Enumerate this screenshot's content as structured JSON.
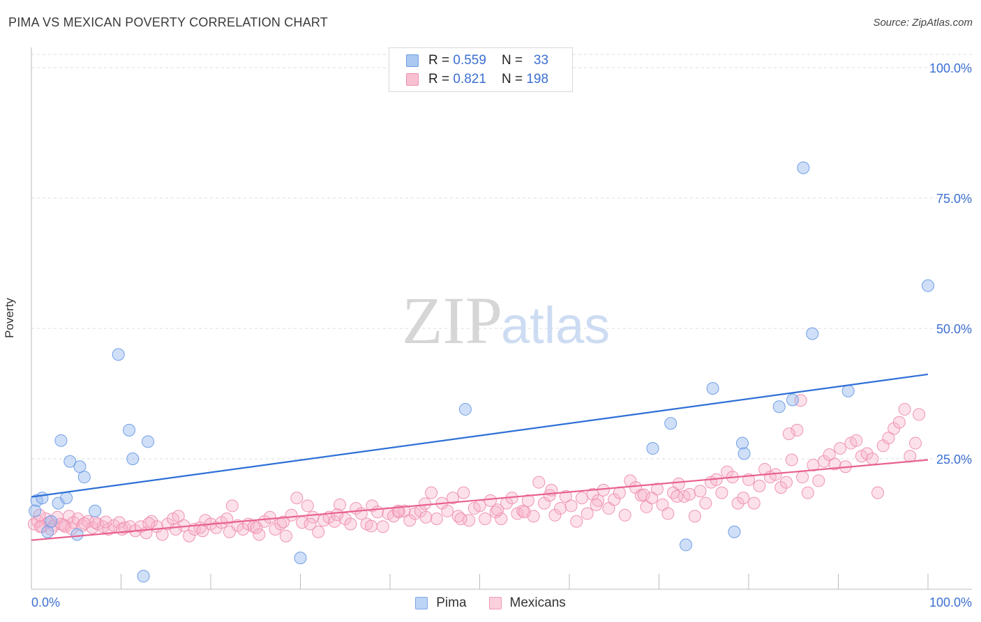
{
  "title": "PIMA VS MEXICAN POVERTY CORRELATION CHART",
  "source": "Source: ZipAtlas.com",
  "watermark": {
    "zip": "ZIP",
    "atlas": "atlas"
  },
  "legend": {
    "rows": [
      {
        "r_label": "R = ",
        "r_value": "0.559",
        "n_label": "N = ",
        "n_value": "33",
        "color": "#aac8f2",
        "border": "#6e9de0"
      },
      {
        "r_label": "R = ",
        "r_value": "0.821",
        "n_label": "N = ",
        "n_value": "198",
        "color": "#f9c0d2",
        "border": "#ec8fae"
      }
    ]
  },
  "bottom_legend": [
    {
      "label": "Pima",
      "color": "#bcd4f6",
      "border": "#7ea6e3"
    },
    {
      "label": "Mexicans",
      "color": "#fbd0dd",
      "border": "#ee9bb6"
    }
  ],
  "chart_data": {
    "type": "scatter",
    "title": "PIMA VS MEXICAN POVERTY CORRELATION CHART",
    "xlabel": "",
    "ylabel": "Poverty",
    "xlim": [
      0,
      100
    ],
    "ylim": [
      0,
      100
    ],
    "x_tick_labels": [
      "0.0%",
      "100.0%"
    ],
    "y_tick_labels": [
      "25.0%",
      "50.0%",
      "75.0%",
      "100.0%"
    ],
    "y_ticks": [
      25,
      50,
      75,
      100
    ],
    "grid": true,
    "series": [
      {
        "name": "Pima",
        "color": "#6f9fe6",
        "fill": "rgba(150,185,240,0.45)",
        "line_color": "#2e6fd6",
        "trend": [
          [
            0,
            17.7
          ],
          [
            100,
            41.2
          ]
        ],
        "points": [
          [
            0.6,
            17.0
          ],
          [
            1.2,
            17.5
          ],
          [
            1.8,
            11.0
          ],
          [
            2.2,
            13.0
          ],
          [
            3.0,
            16.5
          ],
          [
            3.3,
            28.5
          ],
          [
            3.9,
            17.5
          ],
          [
            4.3,
            24.5
          ],
          [
            5.1,
            10.5
          ],
          [
            5.4,
            23.5
          ],
          [
            5.9,
            21.5
          ],
          [
            7.1,
            15.0
          ],
          [
            9.7,
            45.0
          ],
          [
            10.9,
            30.5
          ],
          [
            11.3,
            25.0
          ],
          [
            12.5,
            2.5
          ],
          [
            13.0,
            28.3
          ],
          [
            30.0,
            6.0
          ],
          [
            48.4,
            34.5
          ],
          [
            69.3,
            27.0
          ],
          [
            71.3,
            31.8
          ],
          [
            73.0,
            8.5
          ],
          [
            76.0,
            38.5
          ],
          [
            78.4,
            11.0
          ],
          [
            79.3,
            28.0
          ],
          [
            79.5,
            26.0
          ],
          [
            83.4,
            35.0
          ],
          [
            84.9,
            36.3
          ],
          [
            86.1,
            80.8
          ],
          [
            87.1,
            49.0
          ],
          [
            91.1,
            38.0
          ],
          [
            100.0,
            58.2
          ],
          [
            0.4,
            15.0
          ]
        ]
      },
      {
        "name": "Mexicans",
        "color": "#ef93b2",
        "fill": "rgba(248,180,203,0.40)",
        "line_color": "#e8608e",
        "trend": [
          [
            0,
            9.4
          ],
          [
            100,
            24.8
          ]
        ],
        "points": [
          [
            0.3,
            12.5
          ],
          [
            0.7,
            13.0
          ],
          [
            1.2,
            12.0
          ],
          [
            1.6,
            13.5
          ],
          [
            2.0,
            12.8
          ],
          [
            2.5,
            12.2
          ],
          [
            2.9,
            13.8
          ],
          [
            3.3,
            12.5
          ],
          [
            3.8,
            12.0
          ],
          [
            4.2,
            14.0
          ],
          [
            4.7,
            12.8
          ],
          [
            5.2,
            13.5
          ],
          [
            5.7,
            12.2
          ],
          [
            6.3,
            13.0
          ],
          [
            6.8,
            11.8
          ],
          [
            7.4,
            12.5
          ],
          [
            8.0,
            12.0
          ],
          [
            8.6,
            11.5
          ],
          [
            9.2,
            12.2
          ],
          [
            9.8,
            12.8
          ],
          [
            10.4,
            11.8
          ],
          [
            11.0,
            12.0
          ],
          [
            11.6,
            11.2
          ],
          [
            12.2,
            12.0
          ],
          [
            12.8,
            10.8
          ],
          [
            13.4,
            13.0
          ],
          [
            14.0,
            12.0
          ],
          [
            14.6,
            10.5
          ],
          [
            15.2,
            12.5
          ],
          [
            15.8,
            13.5
          ],
          [
            16.4,
            14.0
          ],
          [
            17.0,
            12.2
          ],
          [
            17.6,
            10.2
          ],
          [
            18.2,
            11.5
          ],
          [
            18.8,
            11.8
          ],
          [
            19.4,
            13.2
          ],
          [
            20.0,
            12.5
          ],
          [
            20.6,
            11.8
          ],
          [
            21.2,
            12.8
          ],
          [
            21.8,
            13.5
          ],
          [
            22.4,
            16.0
          ],
          [
            23.0,
            12.2
          ],
          [
            23.6,
            11.5
          ],
          [
            24.2,
            12.5
          ],
          [
            24.8,
            12.0
          ],
          [
            25.4,
            10.5
          ],
          [
            26.0,
            13.0
          ],
          [
            26.6,
            13.8
          ],
          [
            27.2,
            11.5
          ],
          [
            27.8,
            12.5
          ],
          [
            28.4,
            10.2
          ],
          [
            29.0,
            14.2
          ],
          [
            29.6,
            17.5
          ],
          [
            30.2,
            12.8
          ],
          [
            30.8,
            16.0
          ],
          [
            31.4,
            13.8
          ],
          [
            32.0,
            11.0
          ],
          [
            32.6,
            13.2
          ],
          [
            33.2,
            13.8
          ],
          [
            33.8,
            13.0
          ],
          [
            34.4,
            16.2
          ],
          [
            35.0,
            13.5
          ],
          [
            35.6,
            12.5
          ],
          [
            36.2,
            15.5
          ],
          [
            36.8,
            14.5
          ],
          [
            37.4,
            12.5
          ],
          [
            38.0,
            16.0
          ],
          [
            38.6,
            14.8
          ],
          [
            39.2,
            12.0
          ],
          [
            39.8,
            14.5
          ],
          [
            40.4,
            14.0
          ],
          [
            41.0,
            14.8
          ],
          [
            41.6,
            15.0
          ],
          [
            42.2,
            13.2
          ],
          [
            42.8,
            14.5
          ],
          [
            43.4,
            15.0
          ],
          [
            44.0,
            13.8
          ],
          [
            44.6,
            18.5
          ],
          [
            45.2,
            13.5
          ],
          [
            45.8,
            16.5
          ],
          [
            46.4,
            15.0
          ],
          [
            47.0,
            17.5
          ],
          [
            47.6,
            14.0
          ],
          [
            48.2,
            18.5
          ],
          [
            48.8,
            13.2
          ],
          [
            49.4,
            15.5
          ],
          [
            50.0,
            16.0
          ],
          [
            50.6,
            13.5
          ],
          [
            51.2,
            17.0
          ],
          [
            51.8,
            14.8
          ],
          [
            52.4,
            13.5
          ],
          [
            53.0,
            16.5
          ],
          [
            53.6,
            17.5
          ],
          [
            54.2,
            14.5
          ],
          [
            54.8,
            15.0
          ],
          [
            55.4,
            17.0
          ],
          [
            56.0,
            14.0
          ],
          [
            56.6,
            20.5
          ],
          [
            57.2,
            16.5
          ],
          [
            57.8,
            18.0
          ],
          [
            58.4,
            14.2
          ],
          [
            59.0,
            15.5
          ],
          [
            59.6,
            17.8
          ],
          [
            60.2,
            16.0
          ],
          [
            60.8,
            13.0
          ],
          [
            61.4,
            17.5
          ],
          [
            62.0,
            14.5
          ],
          [
            62.6,
            18.2
          ],
          [
            63.2,
            17.0
          ],
          [
            63.8,
            19.0
          ],
          [
            64.4,
            15.5
          ],
          [
            65.0,
            17.2
          ],
          [
            65.6,
            18.5
          ],
          [
            66.2,
            14.2
          ],
          [
            66.8,
            20.8
          ],
          [
            67.4,
            19.5
          ],
          [
            68.0,
            18.0
          ],
          [
            68.6,
            15.8
          ],
          [
            69.2,
            17.5
          ],
          [
            69.8,
            19.2
          ],
          [
            70.4,
            16.2
          ],
          [
            71.0,
            14.5
          ],
          [
            71.6,
            18.5
          ],
          [
            72.2,
            20.2
          ],
          [
            72.8,
            17.8
          ],
          [
            73.4,
            18.2
          ],
          [
            74.0,
            14.0
          ],
          [
            74.6,
            18.8
          ],
          [
            75.2,
            16.5
          ],
          [
            75.8,
            20.5
          ],
          [
            76.4,
            21.0
          ],
          [
            77.0,
            18.5
          ],
          [
            77.6,
            22.5
          ],
          [
            78.2,
            21.5
          ],
          [
            78.8,
            16.5
          ],
          [
            79.4,
            17.5
          ],
          [
            80.0,
            21.0
          ],
          [
            80.6,
            16.5
          ],
          [
            81.2,
            19.8
          ],
          [
            81.8,
            23.0
          ],
          [
            82.4,
            21.5
          ],
          [
            83.0,
            22.0
          ],
          [
            83.6,
            19.5
          ],
          [
            84.2,
            20.5
          ],
          [
            84.8,
            24.8
          ],
          [
            85.4,
            30.5
          ],
          [
            86.0,
            21.5
          ],
          [
            86.6,
            18.5
          ],
          [
            87.2,
            23.8
          ],
          [
            87.8,
            20.8
          ],
          [
            88.4,
            24.5
          ],
          [
            89.0,
            25.8
          ],
          [
            89.6,
            24.0
          ],
          [
            90.2,
            27.0
          ],
          [
            90.8,
            23.5
          ],
          [
            91.4,
            28.0
          ],
          [
            92.0,
            28.5
          ],
          [
            92.6,
            25.5
          ],
          [
            93.2,
            26.0
          ],
          [
            93.8,
            25.0
          ],
          [
            94.4,
            18.5
          ],
          [
            95.0,
            27.5
          ],
          [
            95.6,
            29.0
          ],
          [
            96.2,
            30.8
          ],
          [
            96.8,
            32.0
          ],
          [
            97.4,
            34.5
          ],
          [
            98.0,
            25.5
          ],
          [
            98.6,
            28.0
          ],
          [
            99.0,
            33.5
          ],
          [
            85.8,
            36.2
          ],
          [
            84.5,
            29.8
          ],
          [
            72.0,
            17.8
          ],
          [
            68.3,
            18.1
          ],
          [
            63.0,
            16.2
          ],
          [
            58.0,
            19.0
          ],
          [
            55.0,
            14.8
          ],
          [
            52.0,
            15.2
          ],
          [
            47.9,
            13.5
          ],
          [
            43.9,
            16.4
          ],
          [
            40.9,
            15.0
          ],
          [
            37.9,
            12.1
          ],
          [
            34.1,
            14.3
          ],
          [
            31.1,
            12.5
          ],
          [
            28.1,
            12.9
          ],
          [
            25.1,
            11.8
          ],
          [
            22.1,
            11.0
          ],
          [
            19.1,
            11.2
          ],
          [
            16.1,
            11.5
          ],
          [
            13.1,
            12.6
          ],
          [
            10.1,
            11.5
          ],
          [
            7.1,
            12.8
          ],
          [
            4.5,
            11.6
          ],
          [
            1.0,
            12.0
          ],
          [
            2.2,
            11.5
          ],
          [
            0.9,
            14.2
          ],
          [
            3.6,
            12.3
          ],
          [
            5.9,
            12.6
          ],
          [
            8.3,
            12.9
          ]
        ]
      }
    ]
  }
}
